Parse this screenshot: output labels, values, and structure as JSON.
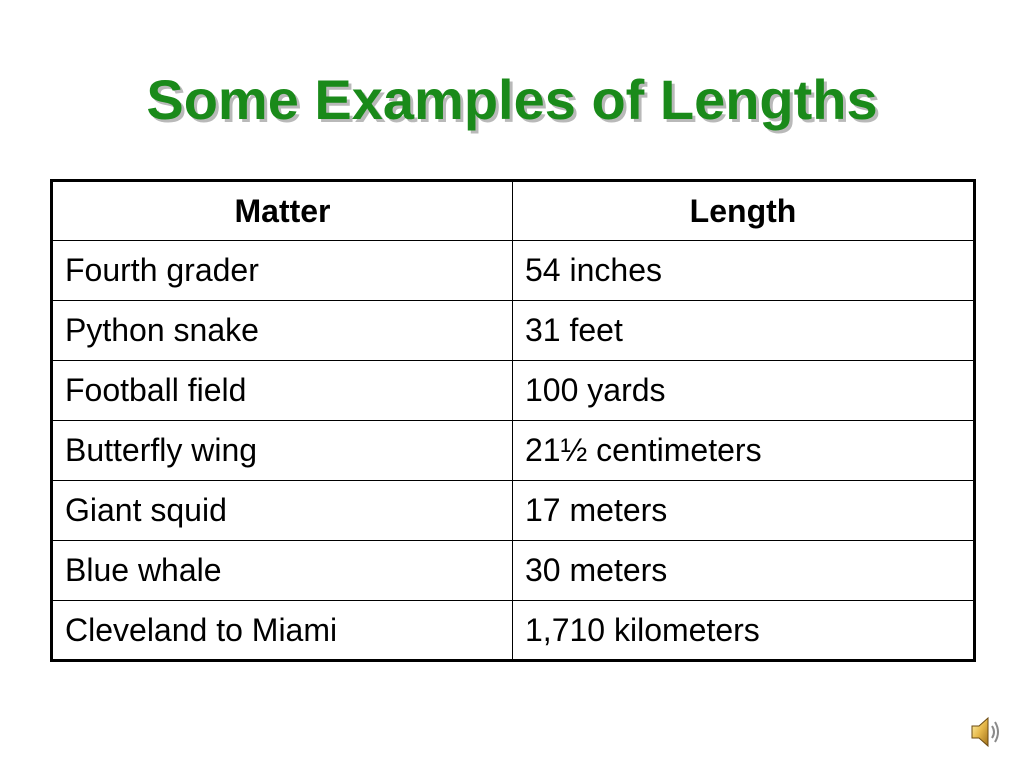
{
  "title": "Some Examples of Lengths",
  "title_color": "#1a8a1a",
  "table": {
    "headers": [
      "Matter",
      "Length"
    ],
    "rows": [
      [
        "Fourth grader",
        "54 inches"
      ],
      [
        "Python snake",
        "31 feet"
      ],
      [
        "Football field",
        "100 yards"
      ],
      [
        "Butterfly wing",
        "21½ centimeters"
      ],
      [
        "Giant squid",
        "17 meters"
      ],
      [
        "Blue whale",
        "30 meters"
      ],
      [
        "Cleveland to Miami",
        "1,710 kilometers"
      ]
    ]
  },
  "icons": {
    "audio": "speaker-icon"
  }
}
